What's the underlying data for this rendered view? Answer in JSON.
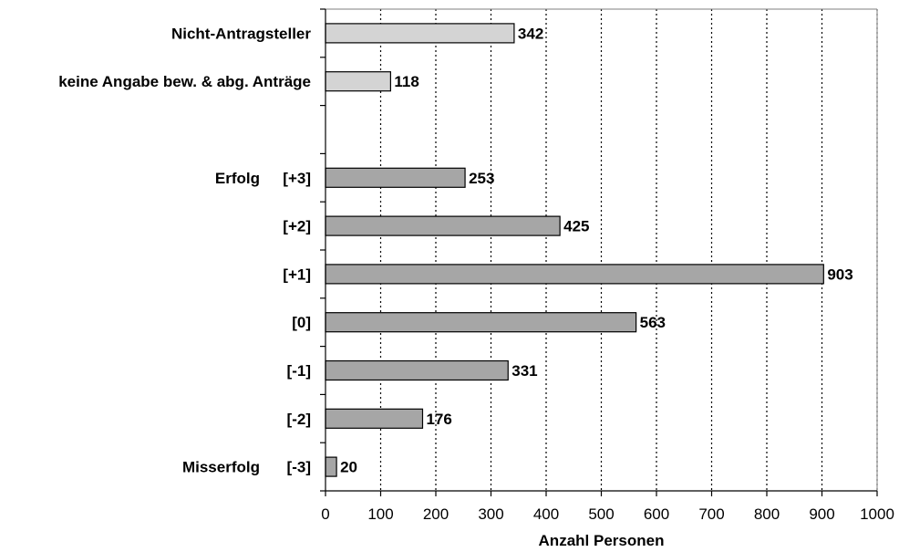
{
  "chart_data": {
    "type": "bar",
    "orientation": "horizontal",
    "categories": [
      {
        "label": "Nicht-Antragsteller",
        "prefix": "",
        "value": 342,
        "color": "#d4d4d4"
      },
      {
        "label": "keine Angabe bew. & abg. Anträge",
        "prefix": "",
        "value": 118,
        "color": "#d4d4d4"
      },
      {
        "label": "",
        "prefix": "",
        "value": null,
        "color": ""
      },
      {
        "label": "[+3]",
        "prefix": "Erfolg",
        "value": 253,
        "color": "#a6a6a6"
      },
      {
        "label": "[+2]",
        "prefix": "",
        "value": 425,
        "color": "#a6a6a6"
      },
      {
        "label": "[+1]",
        "prefix": "",
        "value": 903,
        "color": "#a6a6a6"
      },
      {
        "label": "[0]",
        "prefix": "",
        "value": 563,
        "color": "#a6a6a6"
      },
      {
        "label": "[-1]",
        "prefix": "",
        "value": 331,
        "color": "#a6a6a6"
      },
      {
        "label": "[-2]",
        "prefix": "",
        "value": 176,
        "color": "#a6a6a6"
      },
      {
        "label": "[-3]",
        "prefix": "Misserfolg",
        "value": 20,
        "color": "#a6a6a6"
      }
    ],
    "xlabel": "Anzahl Personen",
    "ylabel": "",
    "xlim": [
      0,
      1000
    ],
    "xticks": [
      0,
      100,
      200,
      300,
      400,
      500,
      600,
      700,
      800,
      900,
      1000
    ],
    "grid": "vertical dotted",
    "legend": "none"
  }
}
